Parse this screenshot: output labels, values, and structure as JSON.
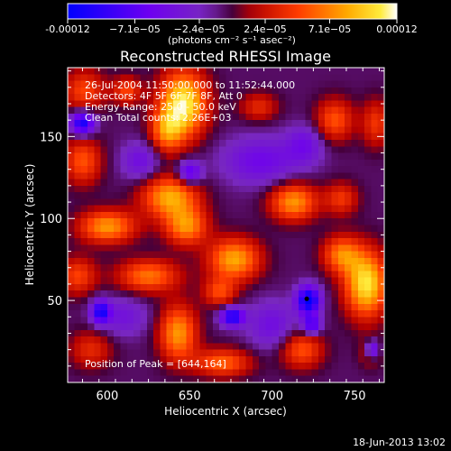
{
  "chart_data": {
    "type": "heatmap",
    "title": "Reconstructed RHESSI Image",
    "xlabel": "Heliocentric X (arcsec)",
    "ylabel": "Heliocentric Y (arcsec)",
    "xlim": [
      576,
      768
    ],
    "ylim": [
      0,
      192
    ],
    "x_ticks": [
      600,
      650,
      700,
      750
    ],
    "y_ticks": [
      50,
      100,
      150
    ],
    "colorbar": {
      "label": "(photons cm⁻² s⁻¹ asec⁻²)",
      "tick_labels": [
        "-0.00012",
        "−7.1e−05",
        "−2.4e−05",
        "2.4e−05",
        "7.1e−05",
        "0.00012"
      ],
      "tick_values": [
        -0.00012,
        -7.1e-05,
        -2.4e-05,
        2.4e-05,
        7.1e-05,
        0.00012
      ],
      "range": [
        -0.00012,
        0.00012
      ],
      "colors": [
        "#0000ff",
        "#6a00ff",
        "#b40000",
        "#ff4000",
        "#ff9a00",
        "#ffe000",
        "#ffffff"
      ]
    },
    "annotations": [
      "26-Jul-2004 11:50:00.000 to 11:52:44.000",
      "Detectors: 4F 5F 6F 7F 8F, Att 0",
      "Energy Range: 25.0 - 50.0 keV",
      "Clean    Total counts: 2.26E+03"
    ],
    "peak_label": "Position of Peak = [644,164]",
    "peak_xy": [
      644,
      164
    ],
    "marker_xy": [
      721,
      51
    ],
    "grid": false,
    "legend": "none",
    "blobs": [
      {
        "x": 646,
        "y": 170,
        "sx": 10,
        "sy": 14,
        "v": 1.0
      },
      {
        "x": 636,
        "y": 153,
        "sx": 7,
        "sy": 9,
        "v": 0.55
      },
      {
        "x": 586,
        "y": 178,
        "sx": 9,
        "sy": 9,
        "v": 0.45
      },
      {
        "x": 612,
        "y": 178,
        "sx": 6,
        "sy": 6,
        "v": 0.45
      },
      {
        "x": 738,
        "y": 160,
        "sx": 8,
        "sy": 9,
        "v": 0.5
      },
      {
        "x": 763,
        "y": 158,
        "sx": 6,
        "sy": 10,
        "v": 0.4
      },
      {
        "x": 692,
        "y": 168,
        "sx": 8,
        "sy": 6,
        "v": 0.35
      },
      {
        "x": 585,
        "y": 135,
        "sx": 8,
        "sy": 10,
        "v": 0.5
      },
      {
        "x": 638,
        "y": 113,
        "sx": 12,
        "sy": 9,
        "v": 0.75
      },
      {
        "x": 648,
        "y": 95,
        "sx": 9,
        "sy": 8,
        "v": 0.65
      },
      {
        "x": 600,
        "y": 95,
        "sx": 12,
        "sy": 7,
        "v": 0.7
      },
      {
        "x": 713,
        "y": 110,
        "sx": 10,
        "sy": 8,
        "v": 0.7
      },
      {
        "x": 742,
        "y": 112,
        "sx": 7,
        "sy": 7,
        "v": 0.4
      },
      {
        "x": 757,
        "y": 60,
        "sx": 9,
        "sy": 14,
        "v": 0.95
      },
      {
        "x": 742,
        "y": 78,
        "sx": 8,
        "sy": 8,
        "v": 0.6
      },
      {
        "x": 677,
        "y": 75,
        "sx": 11,
        "sy": 9,
        "v": 0.75
      },
      {
        "x": 668,
        "y": 55,
        "sx": 7,
        "sy": 6,
        "v": 0.45
      },
      {
        "x": 625,
        "y": 65,
        "sx": 13,
        "sy": 7,
        "v": 0.6
      },
      {
        "x": 582,
        "y": 65,
        "sx": 8,
        "sy": 8,
        "v": 0.45
      },
      {
        "x": 643,
        "y": 30,
        "sx": 8,
        "sy": 12,
        "v": 0.7
      },
      {
        "x": 670,
        "y": 12,
        "sx": 12,
        "sy": 6,
        "v": 0.55
      },
      {
        "x": 718,
        "y": 20,
        "sx": 9,
        "sy": 8,
        "v": 0.5
      },
      {
        "x": 590,
        "y": 20,
        "sx": 9,
        "sy": 8,
        "v": 0.35
      },
      {
        "x": 760,
        "y": 18,
        "sx": 5,
        "sy": 6,
        "v": 0.3
      },
      {
        "x": 585,
        "y": 158,
        "sx": 5,
        "sy": 5,
        "v": -0.9
      },
      {
        "x": 650,
        "y": 128,
        "sx": 5,
        "sy": 5,
        "v": -0.6
      },
      {
        "x": 722,
        "y": 50,
        "sx": 5,
        "sy": 6,
        "v": -1.0
      },
      {
        "x": 724,
        "y": 35,
        "sx": 4,
        "sy": 4,
        "v": -0.65
      },
      {
        "x": 596,
        "y": 43,
        "sx": 4,
        "sy": 5,
        "v": -0.8
      },
      {
        "x": 676,
        "y": 40,
        "sx": 5,
        "sy": 4,
        "v": -0.85
      },
      {
        "x": 761,
        "y": 20,
        "sx": 3,
        "sy": 4,
        "v": -0.7
      },
      {
        "x": 693,
        "y": 135,
        "sx": 16,
        "sy": 10,
        "v": -0.4
      },
      {
        "x": 620,
        "y": 135,
        "sx": 8,
        "sy": 8,
        "v": -0.35
      },
      {
        "x": 720,
        "y": 145,
        "sx": 8,
        "sy": 8,
        "v": -0.35
      },
      {
        "x": 700,
        "y": 35,
        "sx": 10,
        "sy": 10,
        "v": -0.35
      },
      {
        "x": 610,
        "y": 40,
        "sx": 10,
        "sy": 8,
        "v": -0.3
      }
    ]
  },
  "footer": {
    "date": "18-Jun-2013 13:02"
  }
}
